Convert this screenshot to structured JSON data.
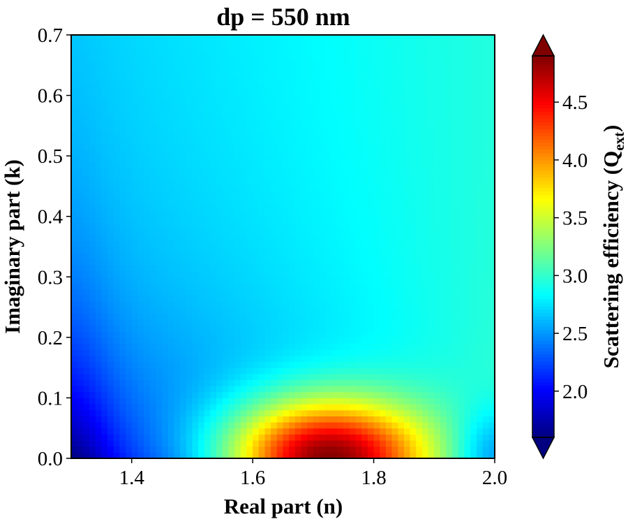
{
  "chart_data": {
    "type": "heatmap",
    "title": "dp = 550 nm",
    "xlabel": "Real part (n)",
    "ylabel": "Imaginary part (k)",
    "xlim": [
      1.3,
      2.0
    ],
    "ylim": [
      0.0,
      0.7
    ],
    "xticks": [
      1.4,
      1.6,
      1.8,
      2.0
    ],
    "xtick_labels": [
      "1.4",
      "1.6",
      "1.8",
      "2.0"
    ],
    "yticks": [
      0.0,
      0.1,
      0.2,
      0.3,
      0.4,
      0.5,
      0.6,
      0.7
    ],
    "ytick_labels": [
      "0.0",
      "0.1",
      "0.2",
      "0.3",
      "0.4",
      "0.5",
      "0.6",
      "0.7"
    ],
    "grid": false,
    "colormap": "jet",
    "colorbar": {
      "label_main": "Scattering efficiency (Q",
      "label_sub": "ext",
      "label_close": ")",
      "vmin": 1.6,
      "vmax": 4.9,
      "extend": "both",
      "ticks": [
        2.0,
        2.5,
        3.0,
        3.5,
        4.0,
        4.5
      ],
      "tick_labels": [
        "2.0",
        "2.5",
        "3.0",
        "3.5",
        "4.0",
        "4.5"
      ]
    },
    "grid_resolution": {
      "n_cols": 70,
      "n_rows": 70
    },
    "key_values": [
      {
        "n": 1.3,
        "k": 0.0,
        "Q": 1.7
      },
      {
        "n": 1.42,
        "k": 0.0,
        "Q": 2.7
      },
      {
        "n": 1.72,
        "k": 0.0,
        "Q": 4.9
      },
      {
        "n": 1.86,
        "k": 0.0,
        "Q": 3.3
      },
      {
        "n": 2.0,
        "k": 0.0,
        "Q": 2.5
      },
      {
        "n": 1.3,
        "k": 0.7,
        "Q": 2.55
      },
      {
        "n": 2.0,
        "k": 0.7,
        "Q": 2.85
      },
      {
        "n": 1.3,
        "k": 0.3,
        "Q": 2.2
      },
      {
        "n": 1.8,
        "k": 0.3,
        "Q": 3.1
      }
    ]
  }
}
